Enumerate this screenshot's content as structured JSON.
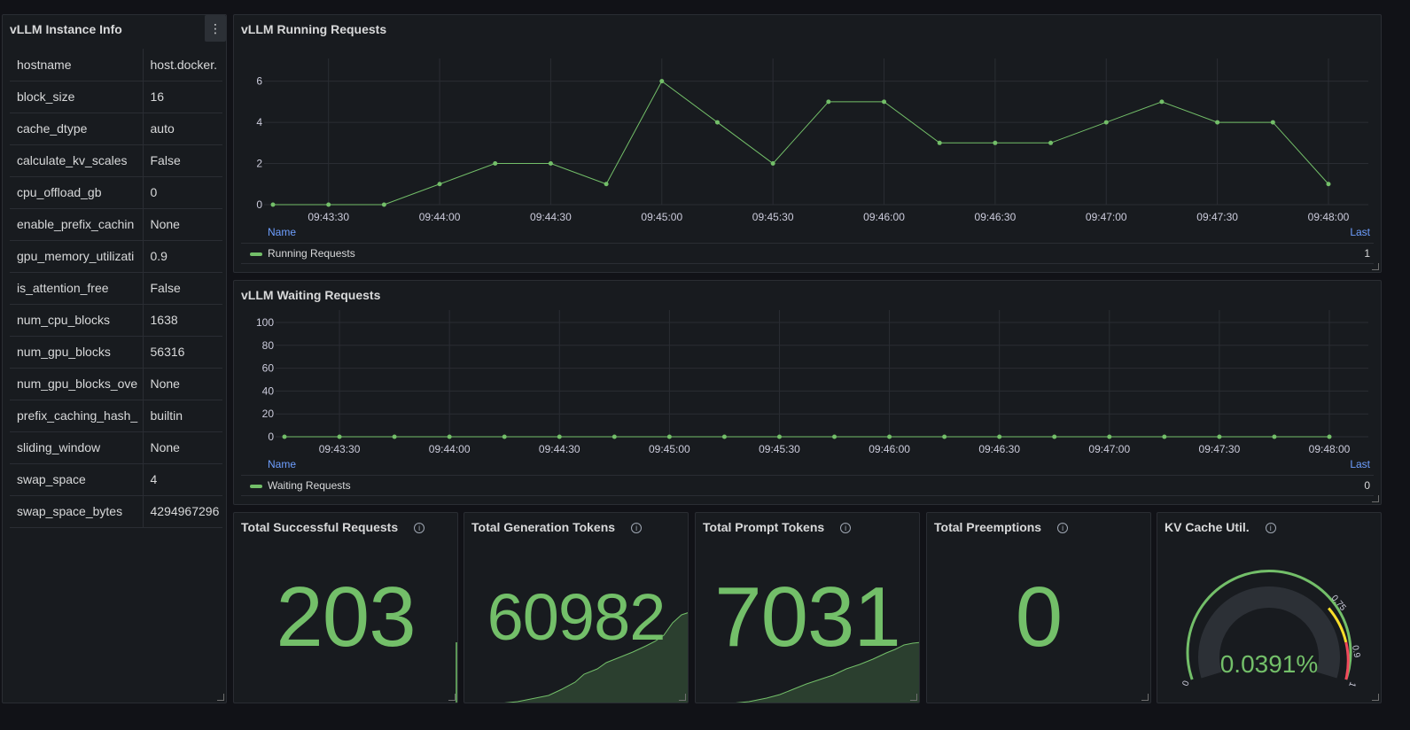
{
  "info_panel": {
    "title": "vLLM Instance Info",
    "menu_glyph": "⋮",
    "rows": [
      {
        "key": "hostname",
        "value": "host.docker."
      },
      {
        "key": "block_size",
        "value": "16"
      },
      {
        "key": "cache_dtype",
        "value": "auto"
      },
      {
        "key": "calculate_kv_scales",
        "value": "False"
      },
      {
        "key": "cpu_offload_gb",
        "value": "0"
      },
      {
        "key": "enable_prefix_cachin",
        "value": "None"
      },
      {
        "key": "gpu_memory_utilizati",
        "value": "0.9"
      },
      {
        "key": "is_attention_free",
        "value": "False"
      },
      {
        "key": "num_cpu_blocks",
        "value": "1638"
      },
      {
        "key": "num_gpu_blocks",
        "value": "56316"
      },
      {
        "key": "num_gpu_blocks_ove",
        "value": "None"
      },
      {
        "key": "prefix_caching_hash_",
        "value": "builtin"
      },
      {
        "key": "sliding_window",
        "value": "None"
      },
      {
        "key": "swap_space",
        "value": "4"
      },
      {
        "key": "swap_space_bytes",
        "value": "4294967296"
      }
    ]
  },
  "running_panel": {
    "title": "vLLM Running Requests",
    "legend_name_header": "Name",
    "legend_last_header": "Last",
    "series_name": "Running Requests",
    "last_value": "1"
  },
  "waiting_panel": {
    "title": "vLLM Waiting Requests",
    "legend_name_header": "Name",
    "legend_last_header": "Last",
    "series_name": "Waiting Requests",
    "last_value": "0"
  },
  "stats": [
    {
      "title": "Total Successful Requests",
      "value": "203"
    },
    {
      "title": "Total Generation Tokens",
      "value": "60982"
    },
    {
      "title": "Total Prompt Tokens",
      "value": "7031"
    },
    {
      "title": "Total Preemptions",
      "value": "0"
    }
  ],
  "kv_panel": {
    "title": "KV Cache Util.",
    "value": "0.0391%",
    "ticks": [
      "0",
      "0.75",
      "0.9",
      "1"
    ],
    "fraction": 0.000391
  },
  "colors": {
    "series": "#73bf69",
    "threshold_yellow": "#fade2a",
    "threshold_red": "#f2495c"
  },
  "chart_data": [
    {
      "type": "line",
      "title": "vLLM Running Requests",
      "x_ticks": [
        "09:43:30",
        "09:44:00",
        "09:44:30",
        "09:45:00",
        "09:45:30",
        "09:46:00",
        "09:46:30",
        "09:47:00",
        "09:47:30",
        "09:48:00"
      ],
      "y_ticks": [
        "0",
        "2",
        "4",
        "6"
      ],
      "ylim": [
        0,
        6.5
      ],
      "x": [
        "09:43:15",
        "09:43:30",
        "09:43:45",
        "09:44:00",
        "09:44:15",
        "09:44:30",
        "09:44:45",
        "09:45:00",
        "09:45:15",
        "09:45:30",
        "09:45:45",
        "09:46:00",
        "09:46:15",
        "09:46:30",
        "09:46:45",
        "09:47:00",
        "09:47:15",
        "09:47:30",
        "09:47:45",
        "09:48:00"
      ],
      "series": [
        {
          "name": "Running Requests",
          "values": [
            0,
            0,
            0,
            1,
            2,
            2,
            1,
            6,
            4,
            2,
            5,
            5,
            3,
            3,
            3,
            4,
            5,
            4,
            4,
            1
          ]
        }
      ],
      "grid": true,
      "legend": "bottom"
    },
    {
      "type": "line",
      "title": "vLLM Waiting Requests",
      "x_ticks": [
        "09:43:30",
        "09:44:00",
        "09:44:30",
        "09:45:00",
        "09:45:30",
        "09:46:00",
        "09:46:30",
        "09:47:00",
        "09:47:30",
        "09:48:00"
      ],
      "y_ticks": [
        "0",
        "20",
        "40",
        "60",
        "80",
        "100"
      ],
      "ylim": [
        0,
        100
      ],
      "x": [
        "09:43:15",
        "09:43:30",
        "09:43:45",
        "09:44:00",
        "09:44:15",
        "09:44:30",
        "09:44:45",
        "09:45:00",
        "09:45:15",
        "09:45:30",
        "09:45:45",
        "09:46:00",
        "09:46:15",
        "09:46:30",
        "09:46:45",
        "09:47:00",
        "09:47:15",
        "09:47:30",
        "09:47:45",
        "09:48:00"
      ],
      "series": [
        {
          "name": "Waiting Requests",
          "values": [
            0,
            0,
            0,
            0,
            0,
            0,
            0,
            0,
            0,
            0,
            0,
            0,
            0,
            0,
            0,
            0,
            0,
            0,
            0,
            0
          ]
        }
      ],
      "grid": true,
      "legend": "bottom"
    }
  ]
}
